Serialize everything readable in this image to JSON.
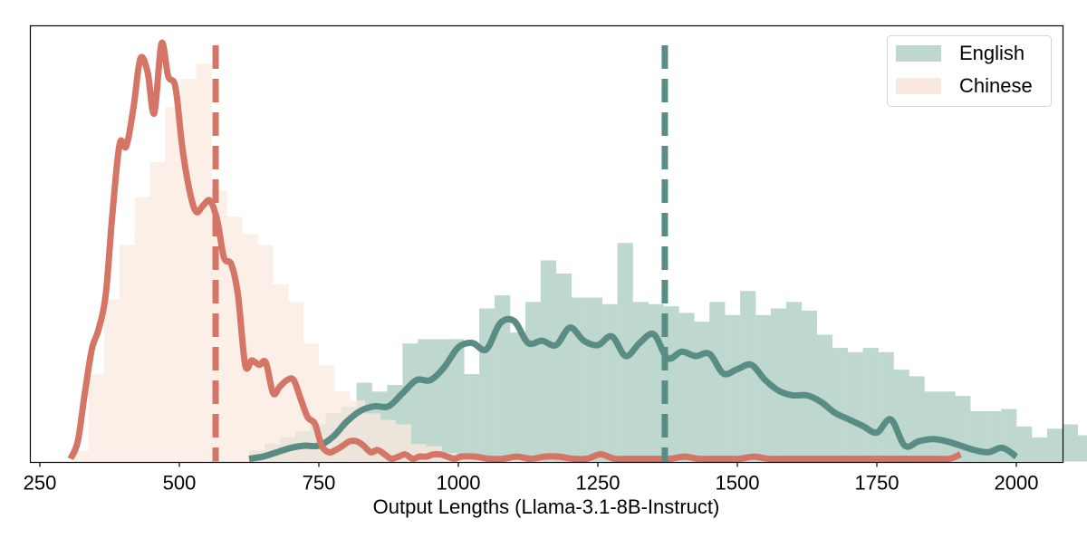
{
  "chart_data": {
    "type": "histogram_kde",
    "title": "",
    "xlabel": "Output Lengths (Llama-3.1-8B-Instruct)",
    "ylabel": "",
    "xlim": [
      230,
      2085
    ],
    "xticks": [
      250,
      500,
      750,
      1000,
      1250,
      1500,
      1750,
      2000
    ],
    "xtick_labels": [
      "250",
      "500",
      "750",
      "1000",
      "1250",
      "1500",
      "1750",
      "2000"
    ],
    "yticks": [],
    "grid": false,
    "legend": {
      "position": "upper right",
      "entries": [
        "English",
        "Chinese"
      ]
    },
    "series": [
      {
        "name": "English",
        "fill_color": "#bfd8cf",
        "line_color": "#588c85",
        "mean": 1370,
        "bins_start": 625,
        "bin_width": 27.5,
        "hist": [
          0.5,
          0.8,
          1.1,
          1.4,
          1.7,
          2.2,
          2.5,
          3.6,
          3.2,
          3.5,
          5.4,
          5.6,
          5.6,
          5.6,
          4.0,
          7.0,
          7.6,
          5.9,
          7.3,
          9.2,
          8.6,
          7.5,
          7.5,
          7.2,
          10.0,
          7.3,
          7.2,
          7.1,
          6.8,
          6.4,
          7.3,
          6.7,
          7.8,
          6.7,
          7.0,
          7.3,
          6.9,
          5.8,
          5.2,
          5.0,
          5.2,
          5.0,
          4.2,
          3.9,
          3.2,
          3.2,
          3.0,
          2.3,
          2.3,
          2.4,
          1.6,
          1.1,
          1.5,
          1.7,
          1.2
        ],
        "kde_x": [
          625,
          650,
          675,
          700,
          725,
          750,
          775,
          800,
          825,
          850,
          875,
          900,
          925,
          950,
          975,
          1000,
          1025,
          1050,
          1075,
          1100,
          1125,
          1150,
          1175,
          1200,
          1225,
          1250,
          1275,
          1300,
          1325,
          1350,
          1375,
          1400,
          1425,
          1450,
          1475,
          1500,
          1525,
          1550,
          1575,
          1600,
          1625,
          1650,
          1675,
          1700,
          1725,
          1750,
          1775,
          1800,
          1825,
          1850,
          1875,
          1900,
          1925,
          1950,
          1975,
          2000
        ],
        "kde_y": [
          0.0,
          0.1,
          0.3,
          0.5,
          0.6,
          0.6,
          1.0,
          1.7,
          2.2,
          2.4,
          2.4,
          3.0,
          3.6,
          3.6,
          4.2,
          5.1,
          5.3,
          5.0,
          6.2,
          6.3,
          5.3,
          5.4,
          5.2,
          6.0,
          5.4,
          5.2,
          5.6,
          4.7,
          5.3,
          5.7,
          4.6,
          4.9,
          4.7,
          4.8,
          3.9,
          4.1,
          4.3,
          3.6,
          3.1,
          2.9,
          2.9,
          2.6,
          2.1,
          1.8,
          1.5,
          1.2,
          1.8,
          0.6,
          0.8,
          0.9,
          0.8,
          0.6,
          0.4,
          0.3,
          0.5,
          0.1
        ]
      },
      {
        "name": "Chinese",
        "fill_color": "#fae9df",
        "line_color": "#d57566",
        "mean": 565,
        "bins_start": 310,
        "bin_width": 27.5,
        "hist": [
          0.5,
          4.0,
          7.4,
          9.9,
          12.1,
          13.7,
          16.2,
          17.5,
          18.2,
          12.4,
          11.2,
          10.4,
          9.9,
          8.1,
          7.3,
          5.4,
          4.4,
          3.2,
          2.8,
          2.2,
          1.9,
          1.7,
          0.8,
          0.7,
          0.4,
          0.3,
          0.2,
          0.2,
          0.1,
          0.1
        ],
        "kde_x": [
          305,
          318,
          330,
          343,
          355,
          368,
          380,
          393,
          405,
          418,
          430,
          443,
          455,
          468,
          480,
          493,
          505,
          518,
          530,
          543,
          555,
          568,
          580,
          593,
          605,
          618,
          630,
          643,
          655,
          668,
          680,
          693,
          705,
          718,
          730,
          743,
          755,
          768,
          780,
          793,
          805,
          818,
          830,
          843,
          855,
          868,
          880,
          893,
          905,
          918,
          930,
          943,
          955,
          968,
          980,
          993,
          1005,
          1030,
          1055,
          1080,
          1105,
          1130,
          1155,
          1180,
          1205,
          1230,
          1255,
          1280,
          1305,
          1330,
          1355,
          1380,
          1405,
          1430,
          1455,
          1480,
          1505,
          1530,
          1555,
          1580,
          1605,
          1630,
          1655,
          1680,
          1705,
          1730,
          1755,
          1780,
          1805,
          1830,
          1855,
          1880,
          1900
        ],
        "kde_y": [
          0.0,
          0.8,
          2.9,
          5.0,
          5.9,
          7.5,
          11.2,
          14.4,
          14.3,
          16.1,
          18.3,
          17.7,
          15.8,
          19.0,
          17.5,
          17.0,
          14.3,
          12.3,
          11.3,
          11.6,
          11.8,
          10.9,
          9.2,
          8.9,
          7.5,
          4.3,
          4.5,
          4.3,
          4.4,
          3.0,
          3.3,
          3.6,
          3.6,
          2.7,
          1.9,
          1.6,
          0.6,
          0.3,
          0.4,
          0.6,
          0.8,
          0.8,
          0.6,
          0.3,
          0.4,
          0.2,
          0.0,
          0.1,
          0.2,
          0.0,
          0.1,
          0.1,
          0.2,
          0.2,
          0.1,
          0.0,
          0.1,
          0.1,
          0.0,
          0.0,
          0.1,
          0.0,
          0.1,
          0.1,
          0.0,
          0.0,
          0.2,
          0.0,
          0.0,
          0.0,
          0.0,
          0.0,
          0.1,
          0.0,
          0.0,
          0.0,
          0.0,
          0.1,
          0.0,
          0.0,
          0.0,
          0.0,
          0.0,
          0.0,
          0.0,
          0.0,
          0.0,
          0.0,
          0.0,
          0.0,
          0.0,
          0.0,
          0.2
        ]
      }
    ],
    "ylim": [
      0,
      19.6
    ]
  }
}
